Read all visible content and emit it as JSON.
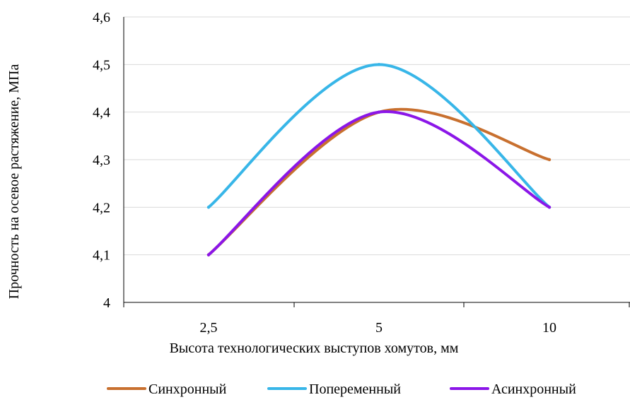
{
  "chart_data": {
    "type": "line",
    "title": "",
    "xlabel": "Высота технологических выступов хомутов, мм",
    "ylabel": "Прочность на осевое растяжение, МПа",
    "categories": [
      "2,5",
      "5",
      "10"
    ],
    "ylim": [
      4.0,
      4.6
    ],
    "yticks": [
      "4",
      "4,1",
      "4,2",
      "4,3",
      "4,4",
      "4,5",
      "4,6"
    ],
    "ytick_values": [
      4.0,
      4.1,
      4.2,
      4.3,
      4.4,
      4.5,
      4.6
    ],
    "grid": true,
    "smooth": true,
    "legend_position": "bottom",
    "series": [
      {
        "name": "Синхронный",
        "values": [
          4.1,
          4.4,
          4.3
        ],
        "color": "#C8702F"
      },
      {
        "name": "Попеременный",
        "values": [
          4.2,
          4.5,
          4.2
        ],
        "color": "#38B6E8"
      },
      {
        "name": "Асинхронный",
        "values": [
          4.1,
          4.4,
          4.2
        ],
        "color": "#8B16E8"
      }
    ]
  }
}
